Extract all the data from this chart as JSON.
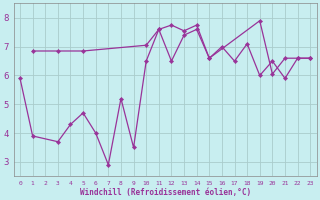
{
  "xlabel": "Windchill (Refroidissement éolien,°C)",
  "background_color": "#c8eef0",
  "grid_color": "#aacccc",
  "line_color": "#993399",
  "xlim": [
    -0.5,
    23.5
  ],
  "ylim": [
    2.5,
    8.5
  ],
  "yticks": [
    3,
    4,
    5,
    6,
    7,
    8
  ],
  "xtick_labels": [
    "0",
    "1",
    "2",
    "3",
    "4",
    "5",
    "6",
    "7",
    "8",
    "9",
    "10",
    "11",
    "12",
    "13",
    "14",
    "15",
    "16",
    "17",
    "18",
    "19",
    "20",
    "21",
    "22",
    "23"
  ],
  "xtick_positions": [
    0,
    1,
    2,
    3,
    4,
    5,
    6,
    7,
    8,
    9,
    10,
    11,
    12,
    13,
    14,
    15,
    16,
    17,
    18,
    19,
    20,
    21,
    22,
    23
  ],
  "series1_x": [
    0,
    1,
    3,
    4,
    5,
    6,
    7,
    8,
    9,
    10,
    11,
    12,
    13,
    14,
    15,
    16,
    17,
    18,
    19,
    20,
    21,
    22,
    23
  ],
  "series1_y": [
    5.9,
    3.9,
    3.7,
    4.3,
    4.7,
    4.0,
    2.9,
    5.2,
    3.5,
    6.5,
    7.6,
    6.5,
    7.4,
    7.6,
    6.6,
    7.0,
    6.5,
    7.1,
    6.0,
    6.5,
    5.9,
    6.6,
    6.6
  ],
  "series2_x": [
    1,
    3,
    5,
    10,
    11,
    12,
    13,
    14,
    15,
    19,
    20,
    21,
    22,
    23
  ],
  "series2_y": [
    6.85,
    6.85,
    6.85,
    7.05,
    7.6,
    7.75,
    7.55,
    7.75,
    6.6,
    7.9,
    6.05,
    6.6,
    6.6,
    6.6
  ],
  "xlabel_fontsize": 5.5,
  "tick_fontsize_x": 4.5,
  "tick_fontsize_y": 6.5,
  "linewidth": 0.9,
  "markersize": 2.2
}
